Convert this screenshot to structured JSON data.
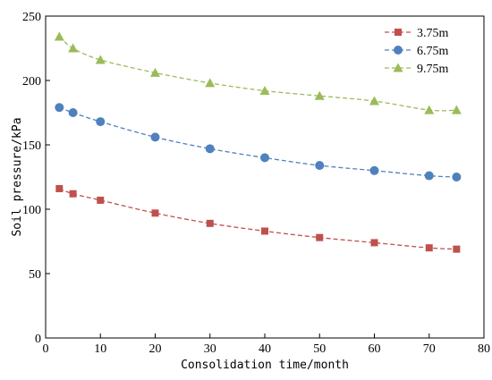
{
  "chart_data": {
    "type": "line",
    "title": "",
    "xlabel": "Consolidation time/month",
    "ylabel": "Soil pressure/kPa",
    "xlim": [
      0,
      80
    ],
    "ylim": [
      0,
      250
    ],
    "xticks": [
      0,
      10,
      20,
      30,
      40,
      50,
      60,
      70,
      80
    ],
    "yticks": [
      0,
      50,
      100,
      150,
      200,
      250
    ],
    "grid": false,
    "legend_position": "top-right",
    "series": [
      {
        "name": "3.75m",
        "color": "#c0504d",
        "marker": "square",
        "x": [
          2.5,
          5,
          10,
          20,
          30,
          40,
          50,
          60,
          70,
          75
        ],
        "y": [
          116,
          112,
          107,
          97,
          89,
          83,
          78,
          74,
          70,
          69
        ]
      },
      {
        "name": "6.75m",
        "color": "#4f81bd",
        "marker": "circle",
        "x": [
          2.5,
          5,
          10,
          20,
          30,
          40,
          50,
          60,
          70,
          75
        ],
        "y": [
          179,
          175,
          168,
          156,
          147,
          140,
          134,
          130,
          126,
          125
        ]
      },
      {
        "name": "9.75m",
        "color": "#9bbb59",
        "marker": "triangle",
        "x": [
          2.5,
          5,
          10,
          20,
          30,
          40,
          50,
          60,
          70,
          75
        ],
        "y": [
          234,
          225,
          216,
          206,
          198,
          192,
          188,
          184,
          177,
          177
        ]
      }
    ]
  }
}
